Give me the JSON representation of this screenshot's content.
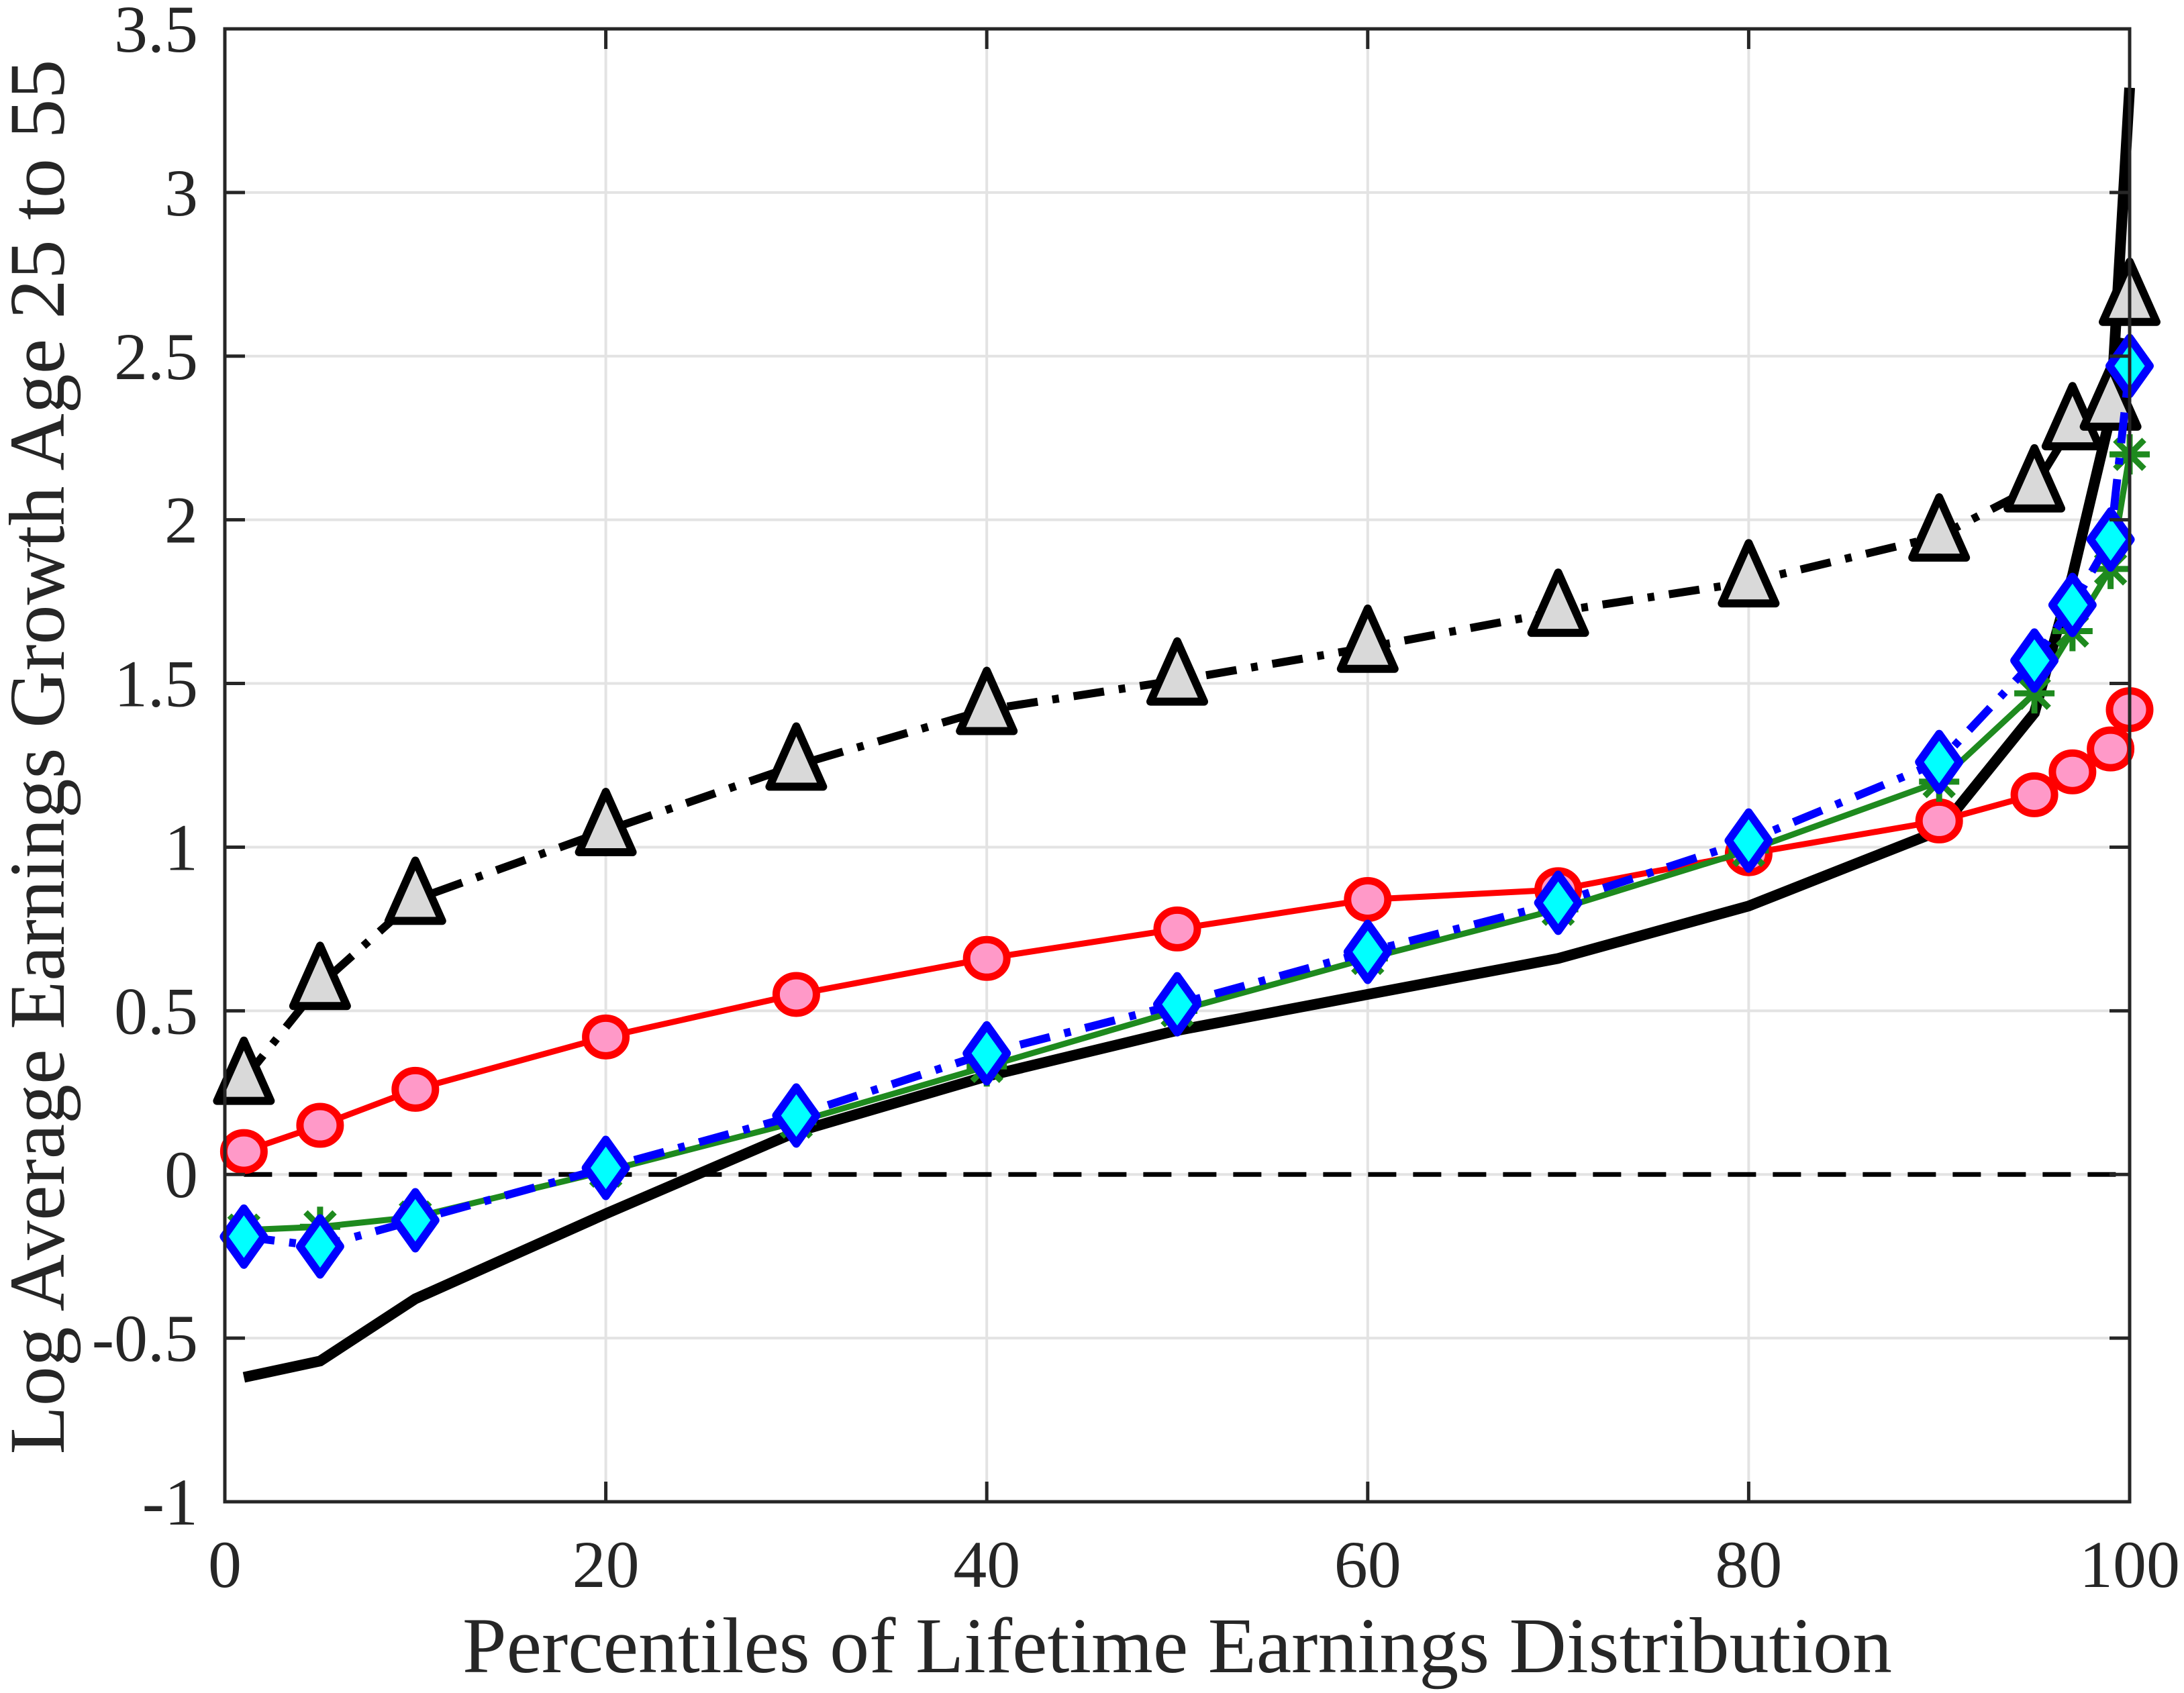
{
  "chart_data": {
    "type": "line",
    "title": "",
    "xlabel": "Percentiles of Lifetime Earnings Distribution",
    "ylabel": "Log Average Earnings Growth Age 25 to 55",
    "xlim": [
      0,
      100
    ],
    "ylim": [
      -1,
      3.5
    ],
    "xticks": [
      0,
      20,
      40,
      60,
      80,
      100
    ],
    "xtick_labels": [
      "0",
      "20",
      "40",
      "60",
      "80",
      "100"
    ],
    "yticks": [
      -1,
      -0.5,
      0,
      0.5,
      1,
      1.5,
      2,
      2.5,
      3,
      3.5
    ],
    "ytick_labels": [
      "-1",
      "-0.5",
      "0",
      "0.5",
      "1",
      "1.5",
      "2",
      "2.5",
      "3",
      "3.5"
    ],
    "grid": true,
    "legend": null,
    "reference_line": {
      "y": 0,
      "style": "dashed",
      "color": "#000000"
    },
    "x": [
      1,
      5,
      10,
      20,
      30,
      40,
      50,
      60,
      70,
      80,
      90,
      95,
      97,
      99,
      100
    ],
    "series": [
      {
        "name": "black-solid-thick",
        "color": "#000000",
        "line_style": "solid",
        "line_width": 16,
        "marker": "none",
        "values": [
          -0.62,
          -0.57,
          -0.38,
          -0.12,
          0.13,
          0.3,
          0.44,
          0.55,
          0.66,
          0.82,
          1.05,
          1.41,
          1.83,
          2.32,
          3.32
        ]
      },
      {
        "name": "triangle-dashdot",
        "color": "#000000",
        "fill": "#D9D9D9",
        "line_style": "dashdot",
        "line_width": 12,
        "marker": "triangle",
        "values": [
          0.29,
          0.58,
          0.84,
          1.05,
          1.25,
          1.42,
          1.51,
          1.61,
          1.72,
          1.81,
          1.95,
          2.1,
          2.29,
          2.35,
          2.67
        ]
      },
      {
        "name": "circle-red",
        "color": "#FF0000",
        "fill": "#FF99C8",
        "line_style": "solid",
        "line_width": 9,
        "marker": "circle",
        "values": [
          0.07,
          0.15,
          0.26,
          0.42,
          0.55,
          0.66,
          0.75,
          0.84,
          0.87,
          0.98,
          1.08,
          1.16,
          1.23,
          1.3,
          1.42
        ]
      },
      {
        "name": "star-green",
        "color": "#1E8A1E",
        "line_style": "solid",
        "line_width": 9,
        "marker": "asterisk",
        "values": [
          -0.17,
          -0.16,
          -0.13,
          0.01,
          0.16,
          0.33,
          0.5,
          0.66,
          0.81,
          0.99,
          1.2,
          1.47,
          1.66,
          1.85,
          2.2
        ]
      },
      {
        "name": "diamond-blue-dashdot",
        "color": "#0000FF",
        "fill": "#00FFFF",
        "line_style": "dashdot",
        "line_width": 12,
        "marker": "diamond",
        "values": [
          -0.19,
          -0.22,
          -0.14,
          0.02,
          0.18,
          0.37,
          0.52,
          0.68,
          0.83,
          1.02,
          1.26,
          1.57,
          1.74,
          1.94,
          2.47
        ]
      }
    ]
  },
  "colors": {
    "axis": "#262626",
    "grid": "#E3E3E3",
    "background": "#FFFFFF"
  }
}
